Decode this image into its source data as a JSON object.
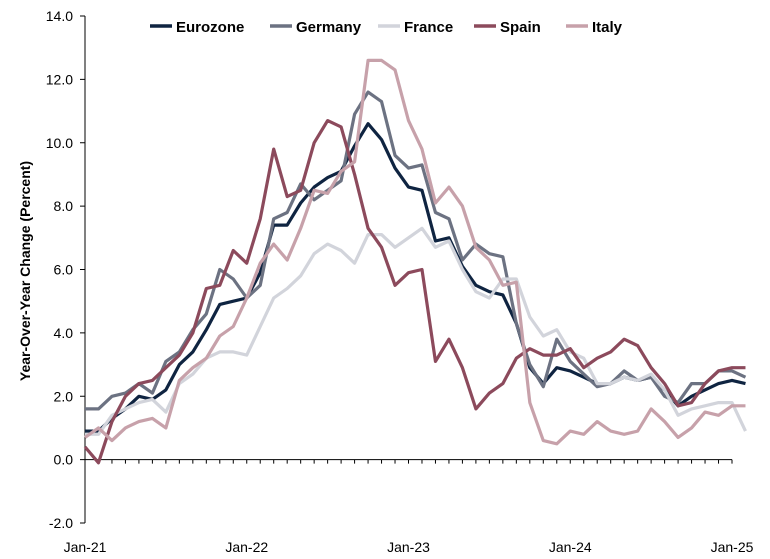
{
  "chart_data": {
    "type": "line",
    "ylabel": "Year-Over-Year Change (Percent)",
    "xlabel": "",
    "ylim": [
      -2,
      14
    ],
    "y_ticks": [
      "-2.0",
      "0.0",
      "2.0",
      "4.0",
      "6.0",
      "8.0",
      "10.0",
      "12.0",
      "14.0"
    ],
    "x_ticks": [
      "Jan-21",
      "Jan-22",
      "Jan-23",
      "Jan-24",
      "Jan-25"
    ],
    "x_start": "Jan-21",
    "x_end": "Jan-25",
    "grid": false,
    "legend_position": "top",
    "series": [
      {
        "name": "Eurozone",
        "color": "#0f2441",
        "values": [
          0.9,
          0.9,
          1.3,
          1.6,
          2.0,
          1.9,
          2.2,
          3.0,
          3.4,
          4.1,
          4.9,
          5.0,
          5.1,
          5.9,
          7.4,
          7.4,
          8.1,
          8.6,
          8.9,
          9.1,
          9.9,
          10.6,
          10.1,
          9.2,
          8.6,
          8.5,
          6.9,
          7.0,
          6.1,
          5.5,
          5.3,
          5.2,
          4.3,
          2.9,
          2.4,
          2.9,
          2.8,
          2.6,
          2.4,
          2.4,
          2.6,
          2.5,
          2.6,
          2.2,
          1.7,
          2.0,
          2.2,
          2.4,
          2.5,
          2.4
        ]
      },
      {
        "name": "Germany",
        "color": "#6c7282",
        "values": [
          1.6,
          1.6,
          2.0,
          2.1,
          2.4,
          2.1,
          3.1,
          3.4,
          4.1,
          4.6,
          6.0,
          5.7,
          5.1,
          5.5,
          7.6,
          7.8,
          8.7,
          8.2,
          8.5,
          8.8,
          10.9,
          11.6,
          11.3,
          9.6,
          9.2,
          9.3,
          7.8,
          7.6,
          6.3,
          6.8,
          6.5,
          6.4,
          4.3,
          3.0,
          2.3,
          3.8,
          3.1,
          2.7,
          2.3,
          2.4,
          2.8,
          2.5,
          2.6,
          2.0,
          1.8,
          2.4,
          2.4,
          2.8,
          2.8,
          2.6
        ]
      },
      {
        "name": "France",
        "color": "#d2d4db",
        "values": [
          0.8,
          0.8,
          1.4,
          1.6,
          1.8,
          1.9,
          1.5,
          2.4,
          2.7,
          3.2,
          3.4,
          3.4,
          3.3,
          4.2,
          5.1,
          5.4,
          5.8,
          6.5,
          6.8,
          6.6,
          6.2,
          7.1,
          7.1,
          6.7,
          7.0,
          7.3,
          6.7,
          6.9,
          6.0,
          5.3,
          5.1,
          5.7,
          5.7,
          4.5,
          3.9,
          4.1,
          3.4,
          3.2,
          2.4,
          2.4,
          2.6,
          2.5,
          2.7,
          2.2,
          1.4,
          1.6,
          1.7,
          1.8,
          1.8,
          0.9
        ]
      },
      {
        "name": "Spain",
        "color": "#8c4a5c",
        "values": [
          0.4,
          -0.1,
          1.2,
          2.0,
          2.4,
          2.5,
          2.9,
          3.3,
          4.0,
          5.4,
          5.5,
          6.6,
          6.2,
          7.6,
          9.8,
          8.3,
          8.5,
          10.0,
          10.7,
          10.5,
          9.0,
          7.3,
          6.7,
          5.5,
          5.9,
          6.0,
          3.1,
          3.8,
          2.9,
          1.6,
          2.1,
          2.4,
          3.2,
          3.5,
          3.3,
          3.3,
          3.5,
          2.9,
          3.2,
          3.4,
          3.8,
          3.6,
          2.9,
          2.4,
          1.7,
          1.8,
          2.4,
          2.8,
          2.9,
          2.9
        ]
      },
      {
        "name": "Italy",
        "color": "#c7a1aa",
        "values": [
          0.7,
          1.0,
          0.6,
          1.0,
          1.2,
          1.3,
          1.0,
          2.5,
          2.9,
          3.2,
          3.9,
          4.2,
          5.1,
          6.2,
          6.8,
          6.3,
          7.3,
          8.5,
          8.4,
          9.1,
          9.4,
          12.6,
          12.6,
          12.3,
          10.7,
          9.8,
          8.1,
          8.6,
          8.0,
          6.7,
          6.3,
          5.5,
          5.6,
          1.8,
          0.6,
          0.5,
          0.9,
          0.8,
          1.2,
          0.9,
          0.8,
          0.9,
          1.6,
          1.2,
          0.7,
          1.0,
          1.5,
          1.4,
          1.7,
          1.7
        ]
      }
    ]
  }
}
